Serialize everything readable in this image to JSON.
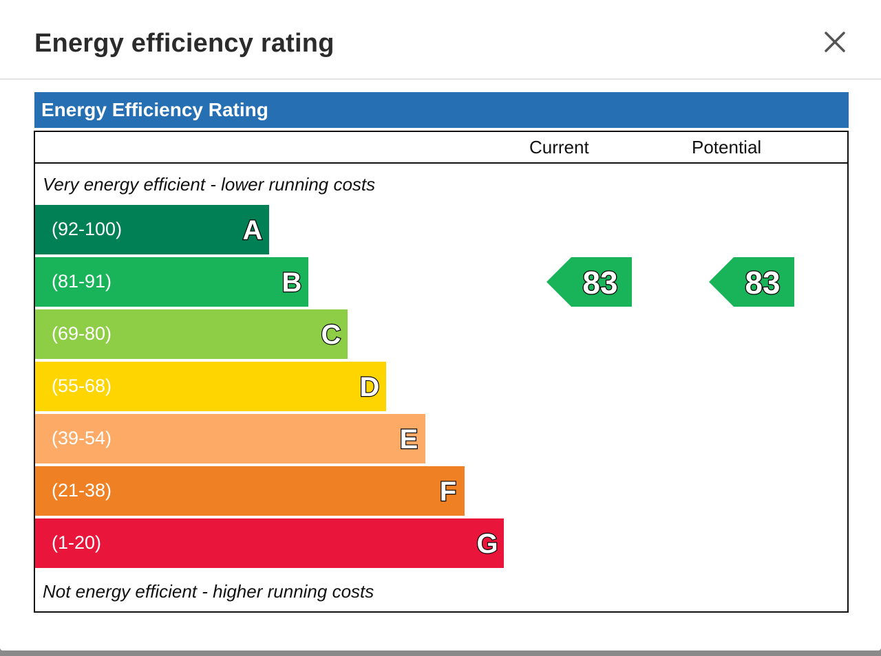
{
  "dialog": {
    "title": "Energy efficiency rating",
    "close_icon": "close-icon"
  },
  "chart": {
    "heading": "Energy Efficiency Rating",
    "heading_color": "#266fb3",
    "columns": {
      "current": "Current",
      "potential": "Potential"
    },
    "top_note": "Very energy efficient - lower running costs",
    "bottom_note": "Not energy efficient - higher running costs",
    "bands": [
      {
        "letter": "A",
        "range": "(92-100)",
        "color": "#008054"
      },
      {
        "letter": "B",
        "range": "(81-91)",
        "color": "#19b459"
      },
      {
        "letter": "C",
        "range": "(69-80)",
        "color": "#8dce46"
      },
      {
        "letter": "D",
        "range": "(55-68)",
        "color": "#ffd500"
      },
      {
        "letter": "E",
        "range": "(39-54)",
        "color": "#fcaa65"
      },
      {
        "letter": "F",
        "range": "(21-38)",
        "color": "#ef8023"
      },
      {
        "letter": "G",
        "range": "(1-20)",
        "color": "#e9153b"
      }
    ],
    "current_rating": {
      "value": "83",
      "band": "B",
      "color": "#19b459"
    },
    "potential_rating": {
      "value": "83",
      "band": "B",
      "color": "#19b459"
    }
  }
}
